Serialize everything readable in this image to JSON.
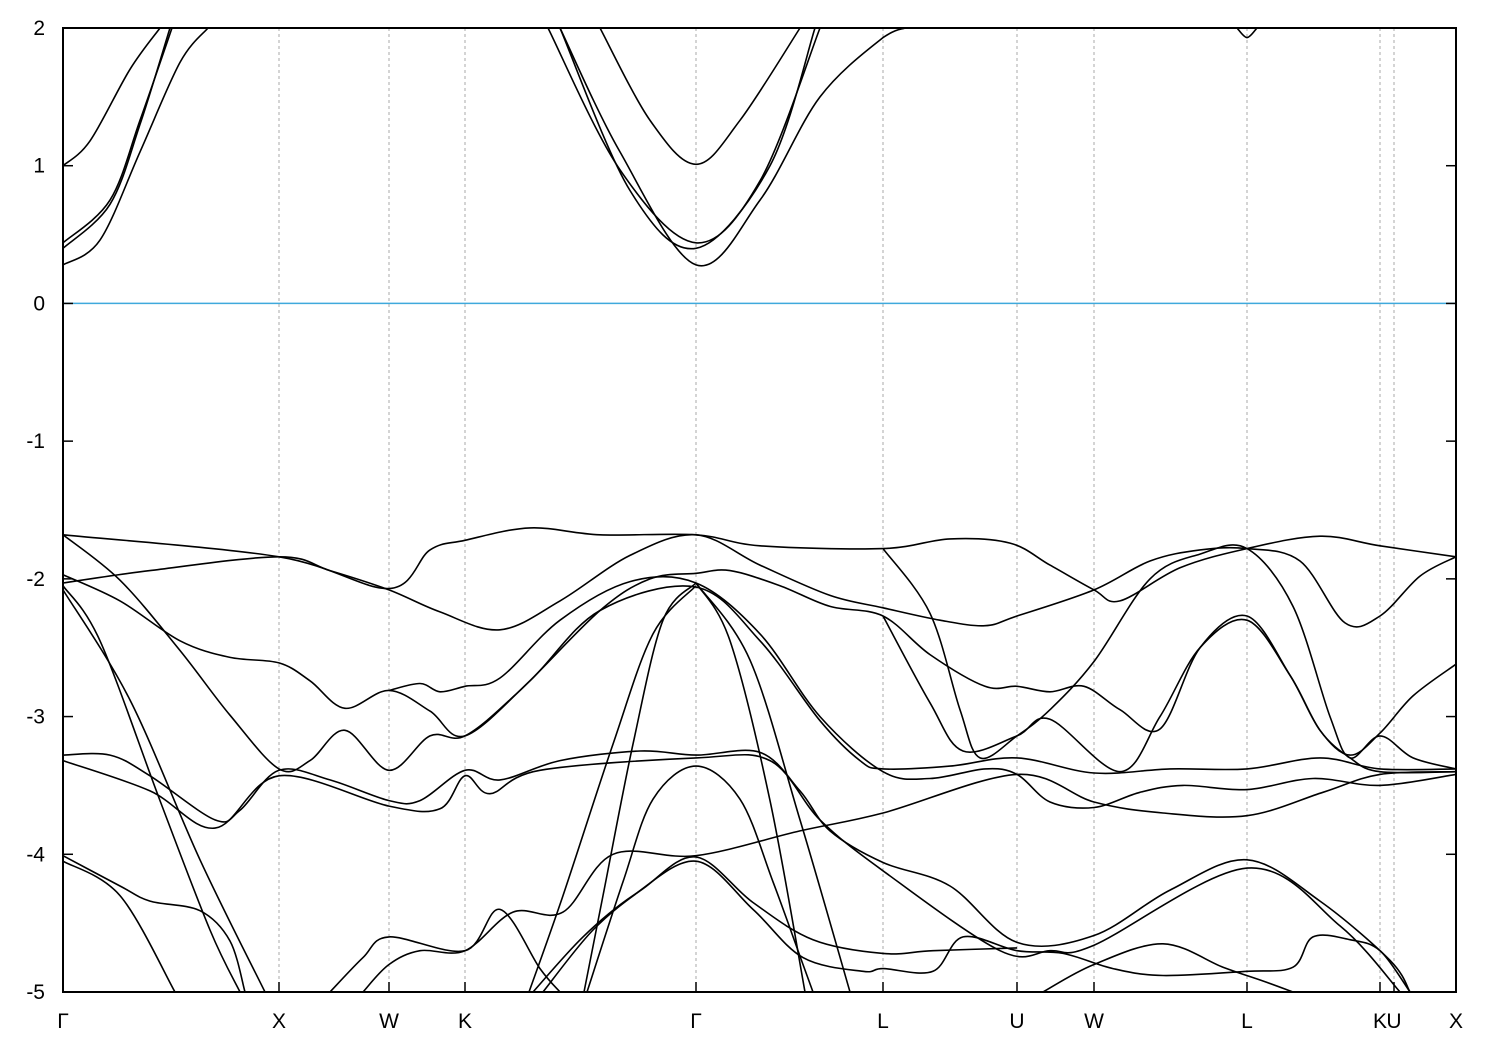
{
  "chart_data": {
    "type": "line",
    "title": "",
    "xlabel": "",
    "ylabel": "",
    "ylim": [
      -5,
      2
    ],
    "xlim": [
      0,
      13.93
    ],
    "yticks": [
      -5,
      -4,
      -3,
      -2,
      -1,
      0,
      1,
      2
    ],
    "ytick_labels": [
      "-5",
      "-4",
      "-3",
      "-2",
      "-1",
      "0",
      "1",
      "2"
    ],
    "xticks": [
      {
        "k": 0,
        "label": "Γ"
      },
      {
        "k": 2.16,
        "label": "X"
      },
      {
        "k": 3.26,
        "label": "W"
      },
      {
        "k": 4.02,
        "label": "K"
      },
      {
        "k": 6.33,
        "label": "Γ"
      },
      {
        "k": 8.2,
        "label": "L"
      },
      {
        "k": 9.54,
        "label": "U"
      },
      {
        "k": 10.31,
        "label": "W"
      },
      {
        "k": 11.84,
        "label": "L"
      },
      {
        "k": 13.17,
        "label": "K"
      },
      {
        "k": 13.31,
        "label": "U"
      },
      {
        "k": 13.93,
        "label": "X"
      }
    ],
    "grid": "vertical dashed at high-symmetry points",
    "fermi_level": {
      "energy": 0,
      "color": "#3fa9dc"
    },
    "band_color": "#000000",
    "bands": [
      [
        [
          0,
          0.28
        ],
        [
          0.37,
          0.46
        ],
        [
          0.77,
          1.1
        ],
        [
          1.17,
          1.75
        ],
        [
          1.45,
          2.0
        ]
      ],
      [
        [
          0,
          1.0
        ],
        [
          0.27,
          1.18
        ],
        [
          0.67,
          1.7
        ],
        [
          0.97,
          2.0
        ]
      ],
      [
        [
          0,
          0.44
        ],
        [
          0.47,
          0.75
        ],
        [
          0.77,
          1.33
        ],
        [
          1.09,
          2.0
        ]
      ],
      [
        [
          0,
          0.4
        ],
        [
          0.47,
          0.72
        ],
        [
          0.77,
          1.3
        ],
        [
          1.07,
          2.0
        ]
      ],
      [
        [
          4.97,
          2.0
        ],
        [
          5.57,
          1.1
        ],
        [
          6.33,
          0.28
        ],
        [
          6.97,
          0.75
        ],
        [
          7.57,
          1.5
        ],
        [
          8.2,
          1.93
        ],
        [
          8.42,
          2.0
        ]
      ],
      [
        [
          5.37,
          2.0
        ],
        [
          5.87,
          1.33
        ],
        [
          6.33,
          1.01
        ],
        [
          6.77,
          1.33
        ],
        [
          7.37,
          2.0
        ]
      ],
      [
        [
          4.85,
          2.0
        ],
        [
          5.57,
          0.97
        ],
        [
          6.33,
          0.44
        ],
        [
          6.97,
          0.89
        ],
        [
          7.57,
          2.0
        ]
      ],
      [
        [
          4.97,
          2.0
        ],
        [
          5.67,
          0.82
        ],
        [
          6.33,
          0.4
        ],
        [
          7.07,
          1.0
        ],
        [
          7.52,
          2.0
        ]
      ],
      [
        [
          11.74,
          2.0
        ],
        [
          11.84,
          1.93
        ],
        [
          11.94,
          2.0
        ]
      ],
      [
        [
          0,
          -1.68
        ],
        [
          2.16,
          -1.84
        ],
        [
          3.26,
          -2.07
        ],
        [
          3.67,
          -1.79
        ],
        [
          4.02,
          -1.72
        ],
        [
          4.67,
          -1.63
        ],
        [
          5.37,
          -1.68
        ],
        [
          6.33,
          -1.68
        ],
        [
          6.97,
          -1.76
        ],
        [
          8.2,
          -1.78
        ],
        [
          8.87,
          -1.71
        ],
        [
          9.47,
          -1.74
        ],
        [
          9.87,
          -1.9
        ],
        [
          10.31,
          -2.08
        ],
        [
          10.57,
          -2.16
        ],
        [
          11.17,
          -1.92
        ],
        [
          11.84,
          -1.78
        ],
        [
          12.57,
          -1.69
        ],
        [
          13.17,
          -1.76
        ],
        [
          13.93,
          -1.84
        ]
      ],
      [
        [
          0,
          -2.03
        ],
        [
          0.87,
          -1.94
        ],
        [
          2.16,
          -1.84
        ],
        [
          2.67,
          -1.94
        ],
        [
          3.26,
          -2.08
        ],
        [
          3.77,
          -2.24
        ],
        [
          4.37,
          -2.37
        ],
        [
          4.97,
          -2.16
        ],
        [
          5.67,
          -1.83
        ],
        [
          6.33,
          -1.68
        ],
        [
          6.97,
          -1.9
        ],
        [
          7.67,
          -2.12
        ],
        [
          8.2,
          -2.21
        ],
        [
          8.77,
          -2.3
        ],
        [
          9.22,
          -2.34
        ],
        [
          9.54,
          -2.27
        ],
        [
          10.31,
          -2.08
        ],
        [
          10.87,
          -1.87
        ],
        [
          11.37,
          -1.79
        ],
        [
          11.84,
          -1.78
        ],
        [
          12.37,
          -1.87
        ],
        [
          12.82,
          -2.32
        ],
        [
          13.17,
          -2.27
        ],
        [
          13.57,
          -1.98
        ],
        [
          13.93,
          -1.84
        ]
      ],
      [
        [
          0,
          -1.68
        ],
        [
          0.57,
          -2.01
        ],
        [
          1.17,
          -2.52
        ],
        [
          1.67,
          -2.99
        ],
        [
          2.16,
          -3.38
        ],
        [
          2.47,
          -3.32
        ],
        [
          2.82,
          -3.1
        ],
        [
          3.26,
          -3.39
        ],
        [
          3.67,
          -3.14
        ],
        [
          4.02,
          -3.14
        ],
        [
          4.57,
          -2.81
        ],
        [
          5.37,
          -2.23
        ],
        [
          5.87,
          -2.0
        ],
        [
          6.33,
          -1.96
        ],
        [
          6.67,
          -1.94
        ],
        [
          7.17,
          -2.05
        ],
        [
          7.67,
          -2.2
        ],
        [
          8.2,
          -2.27
        ],
        [
          8.67,
          -2.55
        ],
        [
          9.22,
          -2.78
        ],
        [
          9.54,
          -2.78
        ],
        [
          9.87,
          -2.82
        ],
        [
          10.21,
          -2.78
        ],
        [
          10.57,
          -2.95
        ],
        [
          10.97,
          -3.09
        ],
        [
          11.37,
          -2.5
        ],
        [
          11.84,
          -2.27
        ],
        [
          12.27,
          -2.7
        ],
        [
          12.57,
          -3.1
        ],
        [
          12.87,
          -3.28
        ],
        [
          13.17,
          -3.12
        ],
        [
          13.5,
          -2.85
        ],
        [
          13.93,
          -2.62
        ]
      ],
      [
        [
          0,
          -1.97
        ],
        [
          0.57,
          -2.16
        ],
        [
          1.17,
          -2.45
        ],
        [
          1.67,
          -2.57
        ],
        [
          2.16,
          -2.61
        ],
        [
          2.47,
          -2.74
        ],
        [
          2.82,
          -2.94
        ],
        [
          3.26,
          -2.81
        ],
        [
          3.67,
          -2.96
        ],
        [
          4.02,
          -3.14
        ],
        [
          4.67,
          -2.74
        ],
        [
          5.37,
          -2.23
        ],
        [
          6.33,
          -2.06
        ],
        [
          6.97,
          -2.45
        ],
        [
          7.57,
          -3.03
        ],
        [
          7.97,
          -3.32
        ],
        [
          8.2,
          -3.38
        ],
        [
          8.87,
          -3.36
        ],
        [
          9.54,
          -3.3
        ],
        [
          10.31,
          -3.41
        ],
        [
          11.07,
          -3.38
        ],
        [
          11.84,
          -3.38
        ],
        [
          12.57,
          -3.3
        ],
        [
          13.17,
          -3.38
        ],
        [
          13.93,
          -3.38
        ]
      ],
      [
        [
          3.26,
          -2.81
        ],
        [
          3.57,
          -2.76
        ],
        [
          3.77,
          -2.82
        ],
        [
          4.02,
          -2.78
        ],
        [
          4.37,
          -2.72
        ],
        [
          4.97,
          -2.3
        ],
        [
          5.67,
          -2.02
        ],
        [
          6.33,
          -2.03
        ],
        [
          6.97,
          -2.4
        ],
        [
          7.57,
          -3.0
        ],
        [
          8.2,
          -3.4
        ],
        [
          8.67,
          -3.45
        ],
        [
          9.22,
          -3.38
        ],
        [
          9.54,
          -3.42
        ],
        [
          9.87,
          -3.62
        ],
        [
          10.31,
          -3.66
        ],
        [
          10.77,
          -3.55
        ],
        [
          11.2,
          -3.5
        ],
        [
          11.84,
          -3.53
        ],
        [
          12.5,
          -3.45
        ],
        [
          13.17,
          -3.5
        ],
        [
          13.93,
          -3.42
        ]
      ],
      [
        [
          0,
          -3.28
        ],
        [
          0.47,
          -3.28
        ],
        [
          0.87,
          -3.43
        ],
        [
          1.52,
          -3.75
        ],
        [
          1.77,
          -3.68
        ],
        [
          2.16,
          -3.39
        ],
        [
          2.67,
          -3.46
        ],
        [
          3.26,
          -3.61
        ],
        [
          3.57,
          -3.61
        ],
        [
          4.02,
          -3.39
        ],
        [
          4.37,
          -3.46
        ],
        [
          4.97,
          -3.32
        ],
        [
          5.77,
          -3.25
        ],
        [
          6.33,
          -3.28
        ],
        [
          6.97,
          -3.26
        ],
        [
          7.37,
          -3.54
        ],
        [
          7.67,
          -3.83
        ],
        [
          8.2,
          -4.06
        ],
        [
          8.87,
          -4.23
        ],
        [
          9.54,
          -4.64
        ],
        [
          10.31,
          -4.59
        ],
        [
          11.07,
          -4.26
        ],
        [
          11.84,
          -4.04
        ],
        [
          12.57,
          -4.34
        ],
        [
          13.27,
          -4.77
        ],
        [
          13.47,
          -5.0
        ]
      ],
      [
        [
          0,
          -3.32
        ],
        [
          0.87,
          -3.54
        ],
        [
          1.52,
          -3.81
        ],
        [
          2.16,
          -3.43
        ],
        [
          3.26,
          -3.65
        ],
        [
          3.77,
          -3.67
        ],
        [
          4.02,
          -3.43
        ],
        [
          4.27,
          -3.56
        ],
        [
          4.77,
          -3.39
        ],
        [
          6.33,
          -3.3
        ],
        [
          7.07,
          -3.32
        ],
        [
          7.57,
          -3.75
        ],
        [
          8.2,
          -4.12
        ],
        [
          9.37,
          -4.7
        ],
        [
          9.87,
          -4.7
        ],
        [
          10.31,
          -4.66
        ],
        [
          11.84,
          -4.1
        ],
        [
          12.77,
          -4.52
        ],
        [
          13.37,
          -5.0
        ]
      ],
      [
        [
          8.2,
          -1.78
        ],
        [
          8.67,
          -2.25
        ],
        [
          8.97,
          -2.95
        ],
        [
          9.17,
          -3.3
        ],
        [
          9.54,
          -3.14
        ],
        [
          9.87,
          -2.95
        ],
        [
          10.31,
          -2.6
        ],
        [
          10.87,
          -2.0
        ],
        [
          11.37,
          -1.82
        ],
        [
          11.84,
          -1.78
        ],
        [
          12.3,
          -2.2
        ],
        [
          12.67,
          -3.0
        ],
        [
          12.87,
          -3.3
        ],
        [
          13.17,
          -3.14
        ],
        [
          13.5,
          -3.3
        ],
        [
          13.93,
          -3.38
        ]
      ],
      [
        [
          8.2,
          -2.27
        ],
        [
          8.67,
          -2.9
        ],
        [
          9.0,
          -3.25
        ],
        [
          9.54,
          -3.14
        ],
        [
          9.87,
          -3.02
        ],
        [
          10.57,
          -3.4
        ],
        [
          10.97,
          -3.0
        ],
        [
          11.37,
          -2.5
        ],
        [
          11.84,
          -2.3
        ],
        [
          12.27,
          -2.7
        ],
        [
          12.57,
          -3.1
        ],
        [
          12.87,
          -3.3
        ],
        [
          13.17,
          -3.4
        ],
        [
          13.93,
          -3.4
        ]
      ],
      [
        [
          0,
          -2.05
        ],
        [
          0.37,
          -2.45
        ],
        [
          0.97,
          -3.61
        ],
        [
          1.47,
          -4.55
        ],
        [
          1.77,
          -5.0
        ]
      ],
      [
        [
          0,
          -2.08
        ],
        [
          0.67,
          -2.88
        ],
        [
          1.37,
          -4.04
        ],
        [
          2.02,
          -5.0
        ]
      ],
      [
        [
          0,
          -4.01
        ],
        [
          0.57,
          -4.23
        ],
        [
          0.87,
          -4.34
        ],
        [
          1.37,
          -4.41
        ],
        [
          1.67,
          -4.63
        ],
        [
          1.82,
          -5.0
        ]
      ],
      [
        [
          0,
          -4.05
        ],
        [
          0.57,
          -4.3
        ],
        [
          1.12,
          -5.0
        ]
      ],
      [
        [
          6.33,
          -2.03
        ],
        [
          6.67,
          -2.45
        ],
        [
          7.07,
          -3.61
        ],
        [
          7.42,
          -5.0
        ]
      ],
      [
        [
          6.33,
          -2.03
        ],
        [
          6.87,
          -2.59
        ],
        [
          7.37,
          -3.75
        ],
        [
          7.87,
          -5.0
        ]
      ],
      [
        [
          6.33,
          -2.03
        ],
        [
          6.0,
          -2.3
        ],
        [
          5.7,
          -3.2
        ],
        [
          5.4,
          -4.3
        ],
        [
          5.21,
          -5.0
        ]
      ],
      [
        [
          6.33,
          -2.05
        ],
        [
          5.9,
          -2.4
        ],
        [
          5.5,
          -3.2
        ],
        [
          5.0,
          -4.3
        ],
        [
          4.66,
          -5.0
        ]
      ],
      [
        [
          5.24,
          -5.0
        ],
        [
          5.6,
          -4.2
        ],
        [
          5.9,
          -3.6
        ],
        [
          6.33,
          -3.36
        ],
        [
          6.77,
          -3.6
        ],
        [
          7.1,
          -4.2
        ],
        [
          7.4,
          -4.8
        ],
        [
          7.5,
          -5.0
        ]
      ],
      [
        [
          4.7,
          -5.0
        ],
        [
          5.2,
          -4.6
        ],
        [
          5.7,
          -4.3
        ],
        [
          6.33,
          -4.05
        ],
        [
          6.9,
          -4.4
        ],
        [
          7.4,
          -4.75
        ],
        [
          8.0,
          -4.85
        ],
        [
          8.2,
          -4.83
        ],
        [
          8.7,
          -4.85
        ],
        [
          9.0,
          -4.6
        ],
        [
          9.54,
          -4.7
        ],
        [
          10.0,
          -4.72
        ],
        [
          10.5,
          -4.83
        ],
        [
          11.0,
          -4.88
        ],
        [
          11.84,
          -4.85
        ],
        [
          12.3,
          -4.82
        ],
        [
          12.5,
          -4.6
        ],
        [
          12.87,
          -4.62
        ],
        [
          13.17,
          -4.7
        ],
        [
          13.47,
          -5.0
        ]
      ],
      [
        [
          4.8,
          -5.0
        ],
        [
          5.3,
          -4.55
        ],
        [
          5.8,
          -4.25
        ],
        [
          6.33,
          -4.02
        ],
        [
          6.9,
          -4.35
        ],
        [
          7.5,
          -4.62
        ],
        [
          8.2,
          -4.72
        ],
        [
          8.7,
          -4.7
        ],
        [
          9.54,
          -4.68
        ]
      ],
      [
        [
          9.8,
          -5.0
        ],
        [
          10.31,
          -4.8
        ],
        [
          11.0,
          -4.65
        ],
        [
          11.6,
          -4.82
        ],
        [
          12.0,
          -4.92
        ],
        [
          12.3,
          -5.0
        ]
      ],
      [
        [
          2.67,
          -5.0
        ],
        [
          3.0,
          -4.75
        ],
        [
          3.26,
          -4.6
        ],
        [
          4.02,
          -4.7
        ],
        [
          4.37,
          -4.4
        ],
        [
          4.77,
          -4.83
        ],
        [
          4.97,
          -5.0
        ]
      ],
      [
        [
          3.0,
          -5.0
        ],
        [
          3.26,
          -4.8
        ],
        [
          3.57,
          -4.7
        ],
        [
          4.02,
          -4.7
        ],
        [
          4.5,
          -4.42
        ],
        [
          5.0,
          -4.42
        ],
        [
          5.5,
          -4.0
        ],
        [
          6.33,
          -4.01
        ],
        [
          7.37,
          -3.83
        ],
        [
          8.2,
          -3.7
        ],
        [
          9.54,
          -3.42
        ],
        [
          10.31,
          -3.62
        ],
        [
          11.0,
          -3.7
        ],
        [
          11.84,
          -3.72
        ],
        [
          12.6,
          -3.55
        ],
        [
          13.17,
          -3.42
        ],
        [
          13.93,
          -3.4
        ]
      ]
    ]
  }
}
